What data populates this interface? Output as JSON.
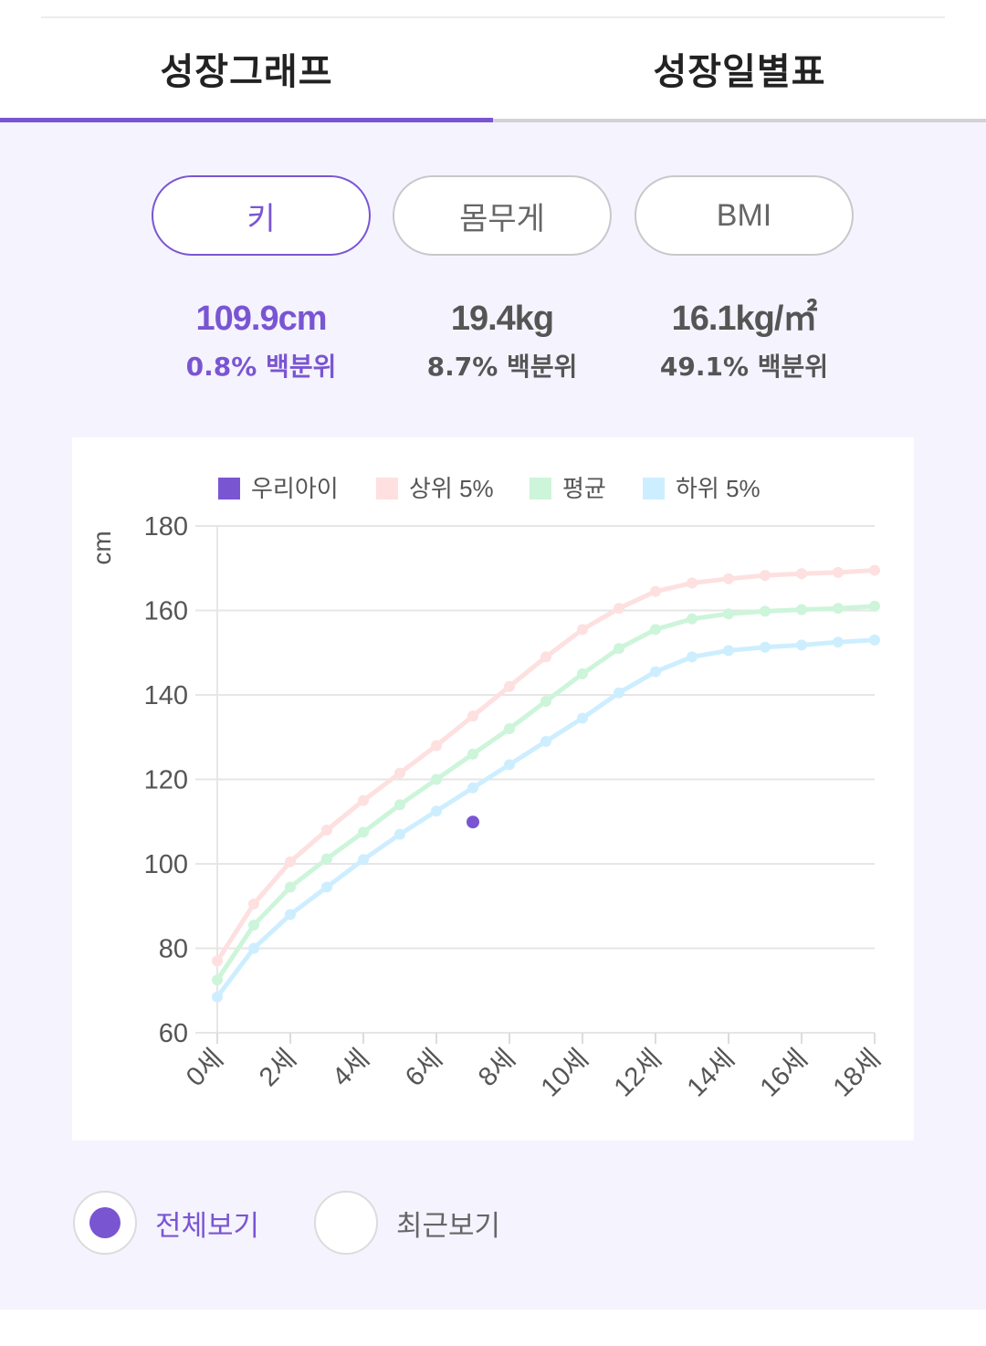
{
  "tabs": [
    {
      "label": "성장그래프",
      "active": true
    },
    {
      "label": "성장일별표",
      "active": false
    }
  ],
  "metric_buttons": [
    {
      "label": "키",
      "active": true
    },
    {
      "label": "몸무게",
      "active": false
    },
    {
      "label": "BMI",
      "active": false
    }
  ],
  "stats": [
    {
      "value": "109.9cm",
      "percentile": "0.8% 백분위"
    },
    {
      "value": "19.4kg",
      "percentile": "8.7% 백분위"
    },
    {
      "value": "16.1kg/㎡",
      "percentile": "49.1% 백분위"
    }
  ],
  "view_options": [
    {
      "label": "전체보기",
      "selected": true
    },
    {
      "label": "최근보기",
      "selected": false
    }
  ],
  "colors": {
    "accent": "#7a55d2",
    "top5": "#fde0df",
    "average": "#ccf5da",
    "bottom5": "#cdeeff"
  },
  "chart_data": {
    "type": "line",
    "ylabel": "cm",
    "ylim": [
      60,
      180
    ],
    "yticks": [
      60,
      80,
      100,
      120,
      140,
      160,
      180
    ],
    "xlim": [
      0,
      18
    ],
    "xtick_labels": [
      "0세",
      "2세",
      "4세",
      "6세",
      "8세",
      "10세",
      "12세",
      "14세",
      "16세",
      "18세"
    ],
    "legend": [
      "우리아이",
      "상위 5%",
      "평균",
      "하위 5%"
    ],
    "legend_position": "top",
    "grid": true,
    "x": [
      0,
      1,
      2,
      3,
      4,
      5,
      6,
      7,
      8,
      9,
      10,
      11,
      12,
      13,
      14,
      15,
      16,
      17,
      18
    ],
    "series": [
      {
        "name": "상위 5%",
        "color": "#fde0df",
        "values": [
          77,
          90.5,
          100.5,
          108,
          115,
          121.5,
          128,
          135,
          142,
          149,
          155.5,
          160.5,
          164.5,
          166.5,
          167.5,
          168.3,
          168.7,
          169,
          169.5
        ]
      },
      {
        "name": "평균",
        "color": "#ccf5da",
        "values": [
          72.5,
          85.5,
          94.5,
          101.2,
          107.5,
          114,
          120,
          126,
          132,
          138.5,
          145,
          151,
          155.5,
          158,
          159.2,
          159.8,
          160.2,
          160.5,
          161
        ]
      },
      {
        "name": "하위 5%",
        "color": "#cdeeff",
        "values": [
          68.5,
          80,
          88,
          94.5,
          101,
          107,
          112.5,
          118,
          123.5,
          129,
          134.5,
          140.5,
          145.5,
          149,
          150.5,
          151.3,
          151.8,
          152.5,
          153
        ]
      },
      {
        "name": "우리아이",
        "color": "#7a55d2",
        "points": [
          [
            7,
            109.9
          ]
        ]
      }
    ]
  }
}
